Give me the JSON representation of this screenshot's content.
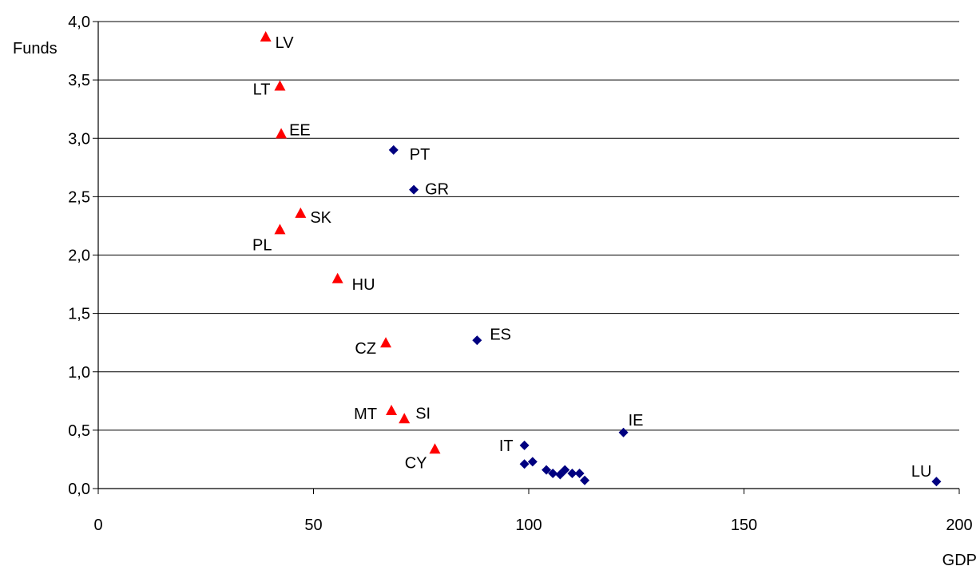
{
  "chart_data": {
    "type": "scatter",
    "title": "",
    "xlabel": "GDP",
    "ylabel": "Funds",
    "xlim": [
      0,
      200
    ],
    "ylim": [
      0,
      4
    ],
    "x_ticks": [
      "0",
      "50",
      "100",
      "150",
      "200"
    ],
    "y_ticks": [
      "0,0",
      "0,5",
      "1,0",
      "1,5",
      "2,0",
      "2,5",
      "3,0",
      "3,5",
      "4,0"
    ],
    "grid": "horizontal",
    "series": [
      {
        "marker": "triangle",
        "color": "#ff0000",
        "points": [
          {
            "label": "LV",
            "x": 38.9,
            "y": 3.87
          },
          {
            "label": "LT",
            "x": 42.2,
            "y": 3.45
          },
          {
            "label": "EE",
            "x": 42.5,
            "y": 3.04
          },
          {
            "label": "SK",
            "x": 47.0,
            "y": 2.36
          },
          {
            "label": "PL",
            "x": 42.2,
            "y": 2.22
          },
          {
            "label": "HU",
            "x": 55.6,
            "y": 1.8
          },
          {
            "label": "CZ",
            "x": 66.8,
            "y": 1.25
          },
          {
            "label": "MT",
            "x": 68.1,
            "y": 0.67
          },
          {
            "label": "SI",
            "x": 71.1,
            "y": 0.6
          },
          {
            "label": "CY",
            "x": 78.2,
            "y": 0.34
          }
        ]
      },
      {
        "marker": "diamond",
        "color": "#000080",
        "points": [
          {
            "label": "PT",
            "x": 68.6,
            "y": 2.9
          },
          {
            "label": "GR",
            "x": 73.3,
            "y": 2.56
          },
          {
            "label": "ES",
            "x": 88.0,
            "y": 1.27
          },
          {
            "label": "IE",
            "x": 122.0,
            "y": 0.48
          },
          {
            "label": "IT",
            "x": 99.0,
            "y": 0.37
          },
          {
            "label": "",
            "x": 99.0,
            "y": 0.21
          },
          {
            "label": "",
            "x": 100.9,
            "y": 0.23
          },
          {
            "label": "",
            "x": 104.1,
            "y": 0.16
          },
          {
            "label": "",
            "x": 105.6,
            "y": 0.13
          },
          {
            "label": "",
            "x": 107.3,
            "y": 0.12
          },
          {
            "label": "",
            "x": 108.4,
            "y": 0.16
          },
          {
            "label": "",
            "x": 110.1,
            "y": 0.13
          },
          {
            "label": "",
            "x": 111.8,
            "y": 0.13
          },
          {
            "label": "",
            "x": 113.0,
            "y": 0.07
          },
          {
            "label": "LU",
            "x": 194.7,
            "y": 0.06
          }
        ]
      }
    ]
  }
}
